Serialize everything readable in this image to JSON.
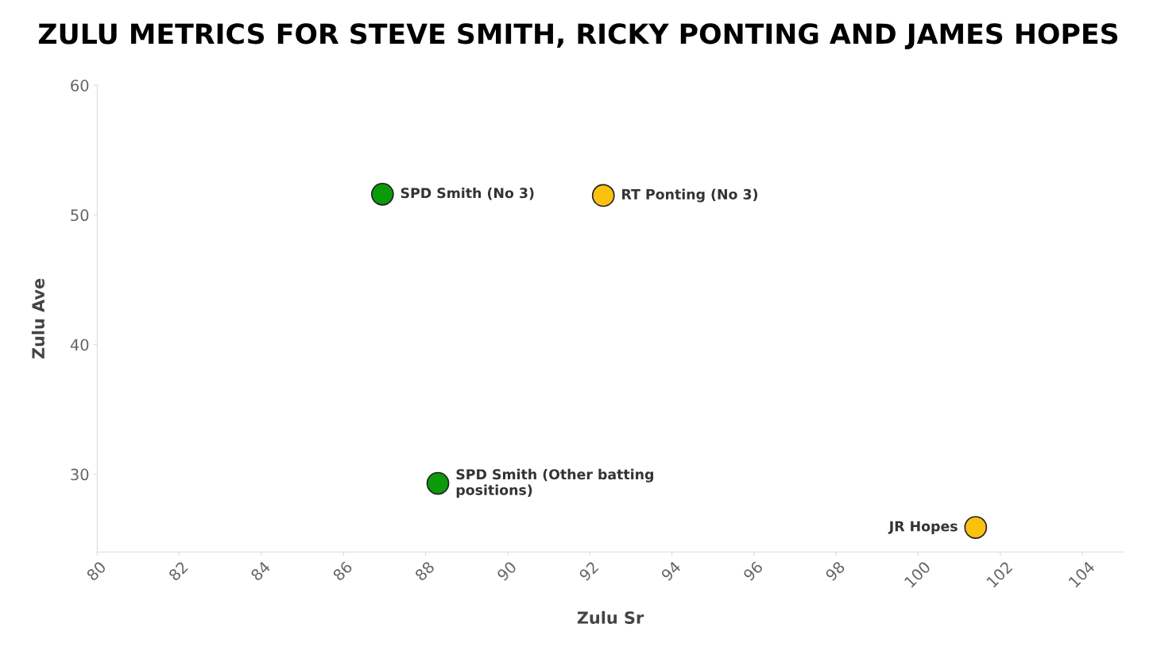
{
  "chart_data": {
    "type": "scatter",
    "title": "ZULU METRICS FOR STEVE SMITH, RICKY PONTING AND JAMES HOPES",
    "xlabel": "Zulu Sr",
    "ylabel": "Zulu Ave",
    "x": [
      86.95,
      92.33,
      88.3,
      101.4
    ],
    "series": [
      {
        "values": [
          51.6,
          51.5,
          29.3,
          25.9
        ],
        "colors": [
          "#0a9a0a",
          "#fcc10e",
          "#0a9a0a",
          "#fcc10e"
        ]
      }
    ],
    "annotations": [
      {
        "text": "SPD Smith (No 3)",
        "x": 86.95,
        "y": 51.6
      },
      {
        "text": "RT Ponting (No 3)",
        "x": 92.33,
        "y": 51.5
      },
      {
        "text": "SPD Smith (Other batting positions)",
        "x": 88.3,
        "y": 29.3
      },
      {
        "text": "JR Hopes",
        "x": 101.4,
        "y": 25.9
      }
    ],
    "xlim": [
      80,
      105
    ],
    "xticks": [
      80,
      82,
      84,
      86,
      88,
      90,
      92,
      94,
      96,
      98,
      100,
      102,
      104
    ],
    "ylim": [
      24,
      60
    ],
    "yticks": [
      30,
      40,
      50,
      60
    ],
    "grid": false,
    "legend": false,
    "marker": "circle"
  }
}
